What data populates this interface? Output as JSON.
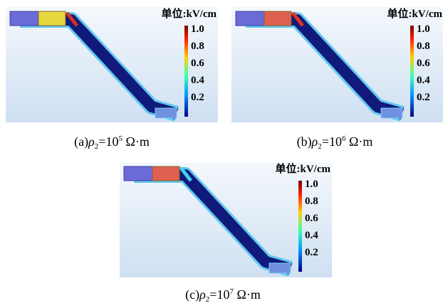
{
  "panels": [
    {
      "unit_label": "单位:kV/cm",
      "colorbar_ticks": [
        "1.0",
        "0.8",
        "0.6",
        "0.4",
        "0.2"
      ],
      "caption": {
        "label": "(a)",
        "symbol": "ρ",
        "subscript": "2",
        "base": "=10",
        "exponent": "5",
        "units": " Ω·m"
      }
    },
    {
      "unit_label": "单位:kV/cm",
      "colorbar_ticks": [
        "1.0",
        "0.8",
        "0.6",
        "0.4",
        "0.2"
      ],
      "caption": {
        "label": "(b)",
        "symbol": "ρ",
        "subscript": "2",
        "base": "=10",
        "exponent": "6",
        "units": " Ω·m"
      }
    },
    {
      "unit_label": "单位:kV/cm",
      "colorbar_ticks": [
        "1.0",
        "0.8",
        "0.6",
        "0.4",
        "0.2"
      ],
      "caption": {
        "label": "(c)",
        "symbol": "ρ",
        "subscript": "2",
        "base": "=10",
        "exponent": "7",
        "units": " Ω·m"
      }
    }
  ]
}
